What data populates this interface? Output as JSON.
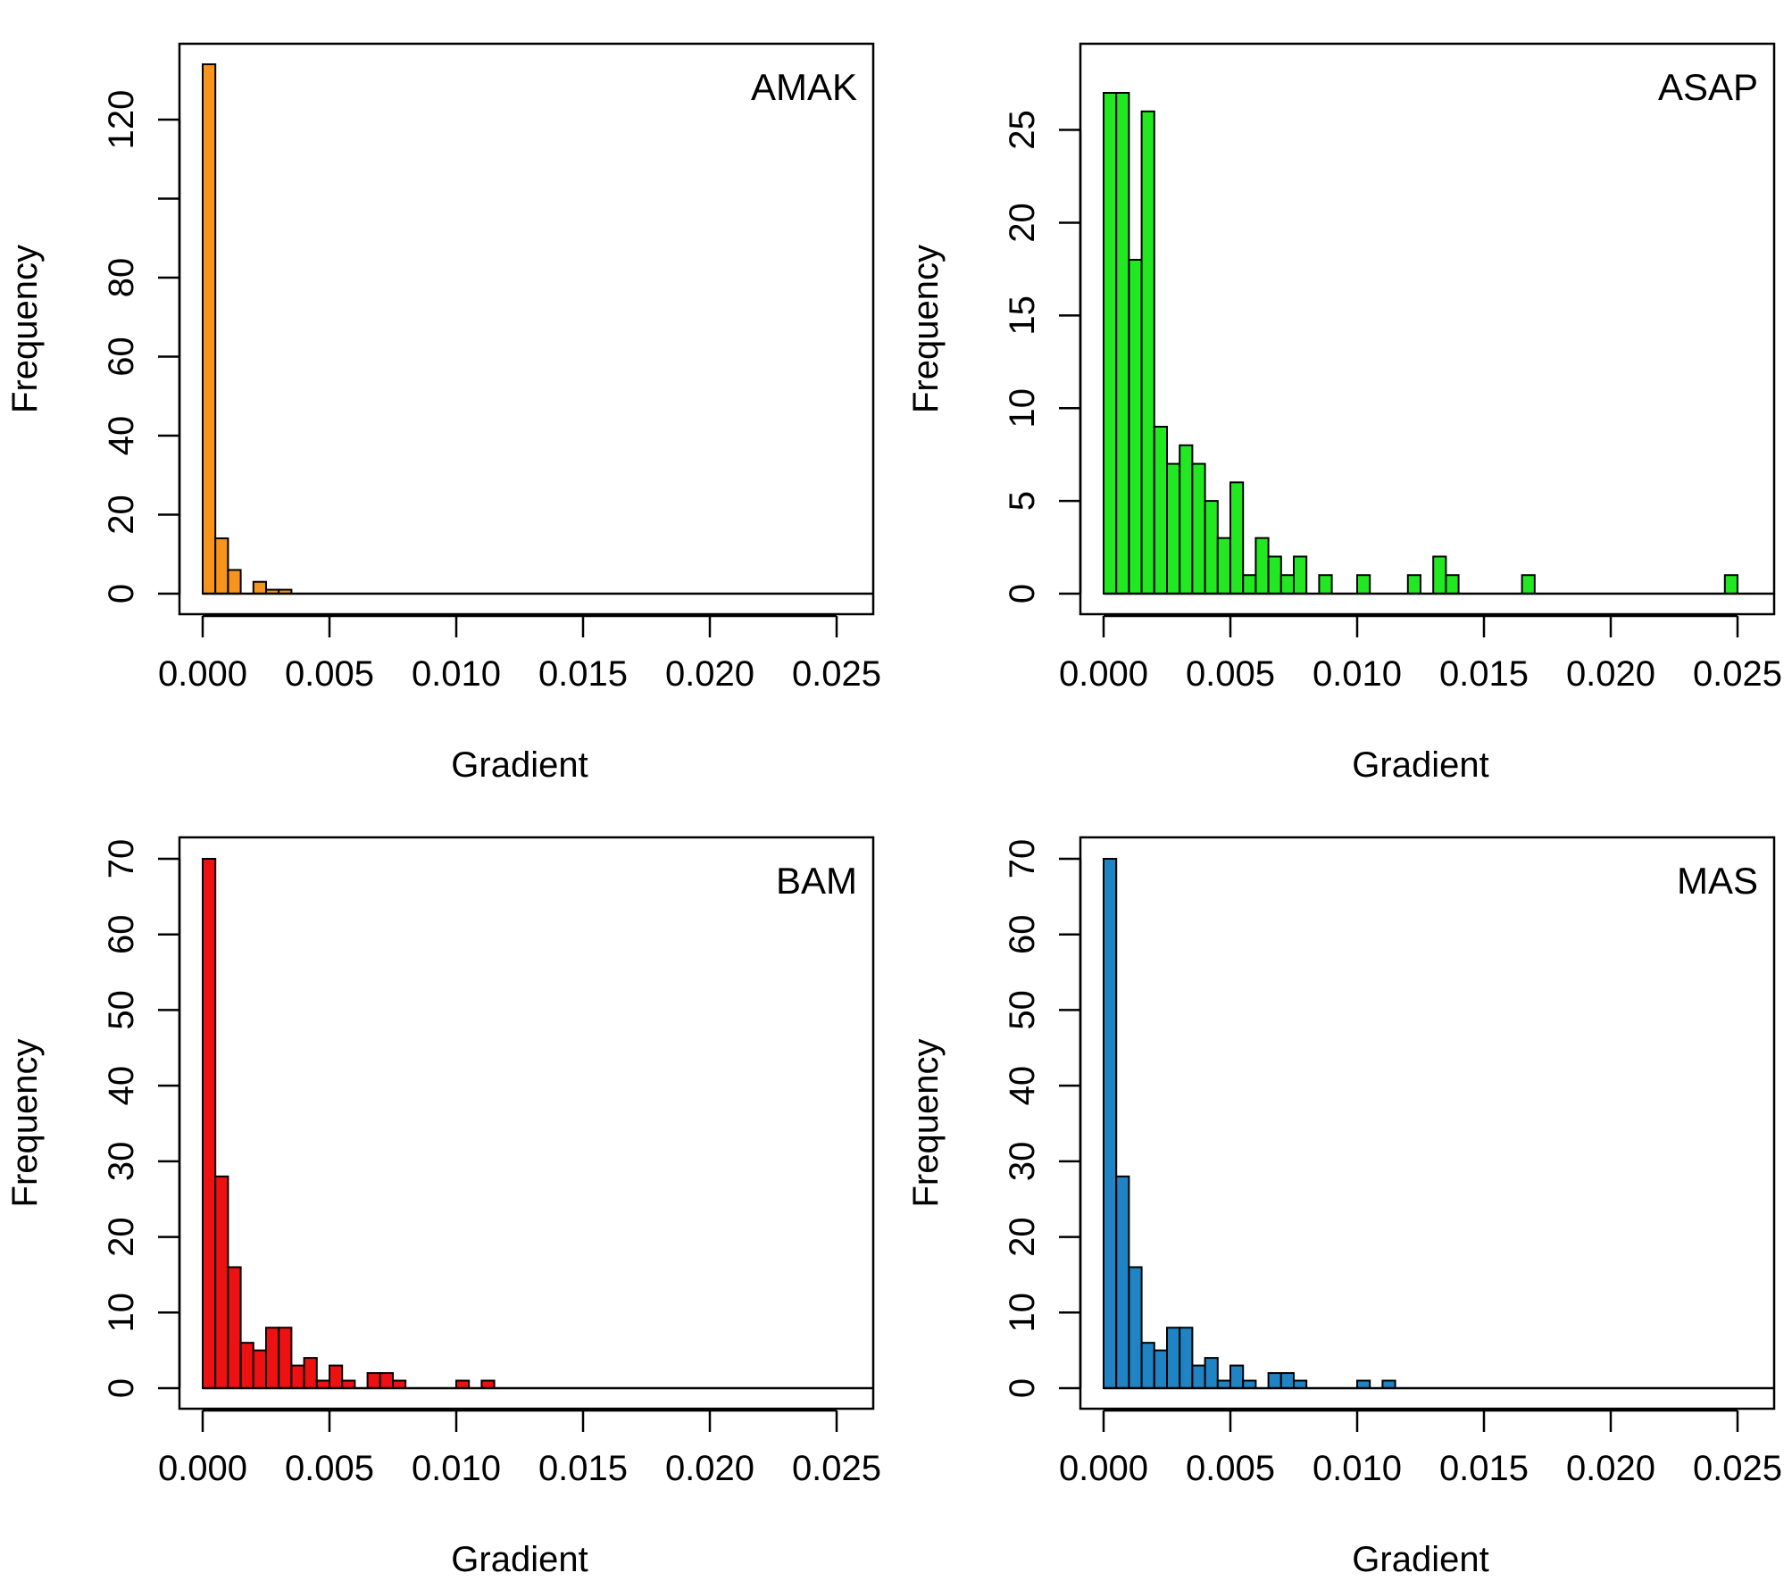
{
  "chart_data": [
    {
      "type": "bar",
      "panel_label": "AMAK",
      "color": "#F7941D",
      "xlabel": "Gradient",
      "ylabel": "Frequency",
      "xlim": [
        0,
        0.025
      ],
      "ylim": [
        0,
        134
      ],
      "x_ticks": [
        "0.000",
        "0.005",
        "0.010",
        "0.015",
        "0.020",
        "0.025"
      ],
      "y_ticks": [
        "0",
        "20",
        "40",
        "60",
        "80",
        "120"
      ],
      "y_tick_values": [
        0,
        20,
        40,
        60,
        80,
        120
      ],
      "y_tick_marks": [
        0,
        20,
        40,
        60,
        80,
        100,
        120
      ],
      "bin_width": 0.0005,
      "bins": [
        {
          "start": 0.0,
          "end": 0.0005,
          "count": 134
        },
        {
          "start": 0.0005,
          "end": 0.001,
          "count": 14
        },
        {
          "start": 0.001,
          "end": 0.0015,
          "count": 6
        },
        {
          "start": 0.002,
          "end": 0.0025,
          "count": 3
        },
        {
          "start": 0.0025,
          "end": 0.003,
          "count": 1
        },
        {
          "start": 0.003,
          "end": 0.0035,
          "count": 1
        }
      ]
    },
    {
      "type": "bar",
      "panel_label": "ASAP",
      "color": "#22E822",
      "xlabel": "Gradient",
      "ylabel": "Frequency",
      "xlim": [
        0,
        0.025
      ],
      "ylim": [
        0,
        27
      ],
      "x_ticks": [
        "0.000",
        "0.005",
        "0.010",
        "0.015",
        "0.020",
        "0.025"
      ],
      "y_ticks": [
        "0",
        "5",
        "10",
        "15",
        "20",
        "25"
      ],
      "y_tick_values": [
        0,
        5,
        10,
        15,
        20,
        25
      ],
      "y_tick_marks": [
        0,
        5,
        10,
        15,
        20,
        25
      ],
      "bin_width": 0.0005,
      "bins": [
        {
          "start": 0.0,
          "end": 0.0005,
          "count": 27
        },
        {
          "start": 0.0005,
          "end": 0.001,
          "count": 27
        },
        {
          "start": 0.001,
          "end": 0.0015,
          "count": 18
        },
        {
          "start": 0.0015,
          "end": 0.002,
          "count": 26
        },
        {
          "start": 0.002,
          "end": 0.0025,
          "count": 9
        },
        {
          "start": 0.0025,
          "end": 0.003,
          "count": 7
        },
        {
          "start": 0.003,
          "end": 0.0035,
          "count": 8
        },
        {
          "start": 0.0035,
          "end": 0.004,
          "count": 7
        },
        {
          "start": 0.004,
          "end": 0.0045,
          "count": 5
        },
        {
          "start": 0.0045,
          "end": 0.005,
          "count": 3
        },
        {
          "start": 0.005,
          "end": 0.0055,
          "count": 6
        },
        {
          "start": 0.0055,
          "end": 0.006,
          "count": 1
        },
        {
          "start": 0.006,
          "end": 0.0065,
          "count": 3
        },
        {
          "start": 0.0065,
          "end": 0.007,
          "count": 2
        },
        {
          "start": 0.007,
          "end": 0.0075,
          "count": 1
        },
        {
          "start": 0.0075,
          "end": 0.008,
          "count": 2
        },
        {
          "start": 0.0085,
          "end": 0.009,
          "count": 1
        },
        {
          "start": 0.01,
          "end": 0.0105,
          "count": 1
        },
        {
          "start": 0.012,
          "end": 0.0125,
          "count": 1
        },
        {
          "start": 0.013,
          "end": 0.0135,
          "count": 2
        },
        {
          "start": 0.0135,
          "end": 0.014,
          "count": 1
        },
        {
          "start": 0.0165,
          "end": 0.017,
          "count": 1
        },
        {
          "start": 0.0245,
          "end": 0.025,
          "count": 1
        }
      ]
    },
    {
      "type": "bar",
      "panel_label": "BAM",
      "color": "#EE1111",
      "xlabel": "Gradient",
      "ylabel": "Frequency",
      "xlim": [
        0,
        0.025
      ],
      "ylim": [
        0,
        70
      ],
      "x_ticks": [
        "0.000",
        "0.005",
        "0.010",
        "0.015",
        "0.020",
        "0.025"
      ],
      "y_ticks": [
        "0",
        "10",
        "20",
        "30",
        "40",
        "50",
        "60",
        "70"
      ],
      "y_tick_values": [
        0,
        10,
        20,
        30,
        40,
        50,
        60,
        70
      ],
      "y_tick_marks": [
        0,
        10,
        20,
        30,
        40,
        50,
        60,
        70
      ],
      "bin_width": 0.0005,
      "bins": [
        {
          "start": 0.0,
          "end": 0.0005,
          "count": 70
        },
        {
          "start": 0.0005,
          "end": 0.001,
          "count": 28
        },
        {
          "start": 0.001,
          "end": 0.0015,
          "count": 16
        },
        {
          "start": 0.0015,
          "end": 0.002,
          "count": 6
        },
        {
          "start": 0.002,
          "end": 0.0025,
          "count": 5
        },
        {
          "start": 0.0025,
          "end": 0.003,
          "count": 8
        },
        {
          "start": 0.003,
          "end": 0.0035,
          "count": 8
        },
        {
          "start": 0.0035,
          "end": 0.004,
          "count": 3
        },
        {
          "start": 0.004,
          "end": 0.0045,
          "count": 4
        },
        {
          "start": 0.0045,
          "end": 0.005,
          "count": 1
        },
        {
          "start": 0.005,
          "end": 0.0055,
          "count": 3
        },
        {
          "start": 0.0055,
          "end": 0.006,
          "count": 1
        },
        {
          "start": 0.0065,
          "end": 0.007,
          "count": 2
        },
        {
          "start": 0.007,
          "end": 0.0075,
          "count": 2
        },
        {
          "start": 0.0075,
          "end": 0.008,
          "count": 1
        },
        {
          "start": 0.01,
          "end": 0.0105,
          "count": 1
        },
        {
          "start": 0.011,
          "end": 0.0115,
          "count": 1
        }
      ]
    },
    {
      "type": "bar",
      "panel_label": "MAS",
      "color": "#1F83C4",
      "xlabel": "Gradient",
      "ylabel": "Frequency",
      "xlim": [
        0,
        0.025
      ],
      "ylim": [
        0,
        70
      ],
      "x_ticks": [
        "0.000",
        "0.005",
        "0.010",
        "0.015",
        "0.020",
        "0.025"
      ],
      "y_ticks": [
        "0",
        "10",
        "20",
        "30",
        "40",
        "50",
        "60",
        "70"
      ],
      "y_tick_values": [
        0,
        10,
        20,
        30,
        40,
        50,
        60,
        70
      ],
      "y_tick_marks": [
        0,
        10,
        20,
        30,
        40,
        50,
        60,
        70
      ],
      "bin_width": 0.0005,
      "bins": [
        {
          "start": 0.0,
          "end": 0.0005,
          "count": 70
        },
        {
          "start": 0.0005,
          "end": 0.001,
          "count": 28
        },
        {
          "start": 0.001,
          "end": 0.0015,
          "count": 16
        },
        {
          "start": 0.0015,
          "end": 0.002,
          "count": 6
        },
        {
          "start": 0.002,
          "end": 0.0025,
          "count": 5
        },
        {
          "start": 0.0025,
          "end": 0.003,
          "count": 8
        },
        {
          "start": 0.003,
          "end": 0.0035,
          "count": 8
        },
        {
          "start": 0.0035,
          "end": 0.004,
          "count": 3
        },
        {
          "start": 0.004,
          "end": 0.0045,
          "count": 4
        },
        {
          "start": 0.0045,
          "end": 0.005,
          "count": 1
        },
        {
          "start": 0.005,
          "end": 0.0055,
          "count": 3
        },
        {
          "start": 0.0055,
          "end": 0.006,
          "count": 1
        },
        {
          "start": 0.0065,
          "end": 0.007,
          "count": 2
        },
        {
          "start": 0.007,
          "end": 0.0075,
          "count": 2
        },
        {
          "start": 0.0075,
          "end": 0.008,
          "count": 1
        },
        {
          "start": 0.01,
          "end": 0.0105,
          "count": 1
        },
        {
          "start": 0.011,
          "end": 0.0115,
          "count": 1
        }
      ]
    }
  ]
}
